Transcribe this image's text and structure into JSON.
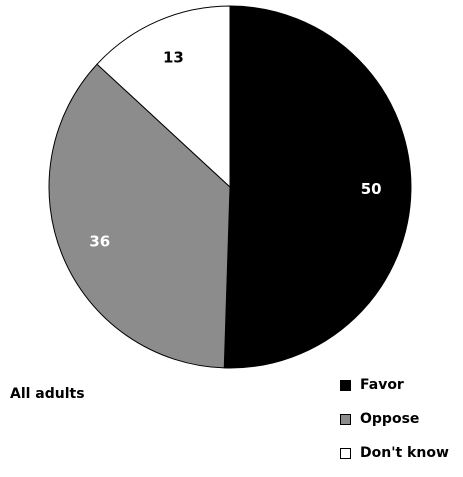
{
  "chart_data": {
    "type": "pie",
    "title": "",
    "group_label": "All adults",
    "categories": [
      "Favor",
      "Oppose",
      "Don't know"
    ],
    "values": [
      50,
      36,
      13
    ],
    "colors": [
      "#000000",
      "#8c8c8c",
      "#ffffff"
    ],
    "label_colors": [
      "#ffffff",
      "#ffffff",
      "#000000"
    ],
    "start_angle_deg": 0,
    "direction": "clockwise",
    "legend_position": "bottom-right"
  }
}
